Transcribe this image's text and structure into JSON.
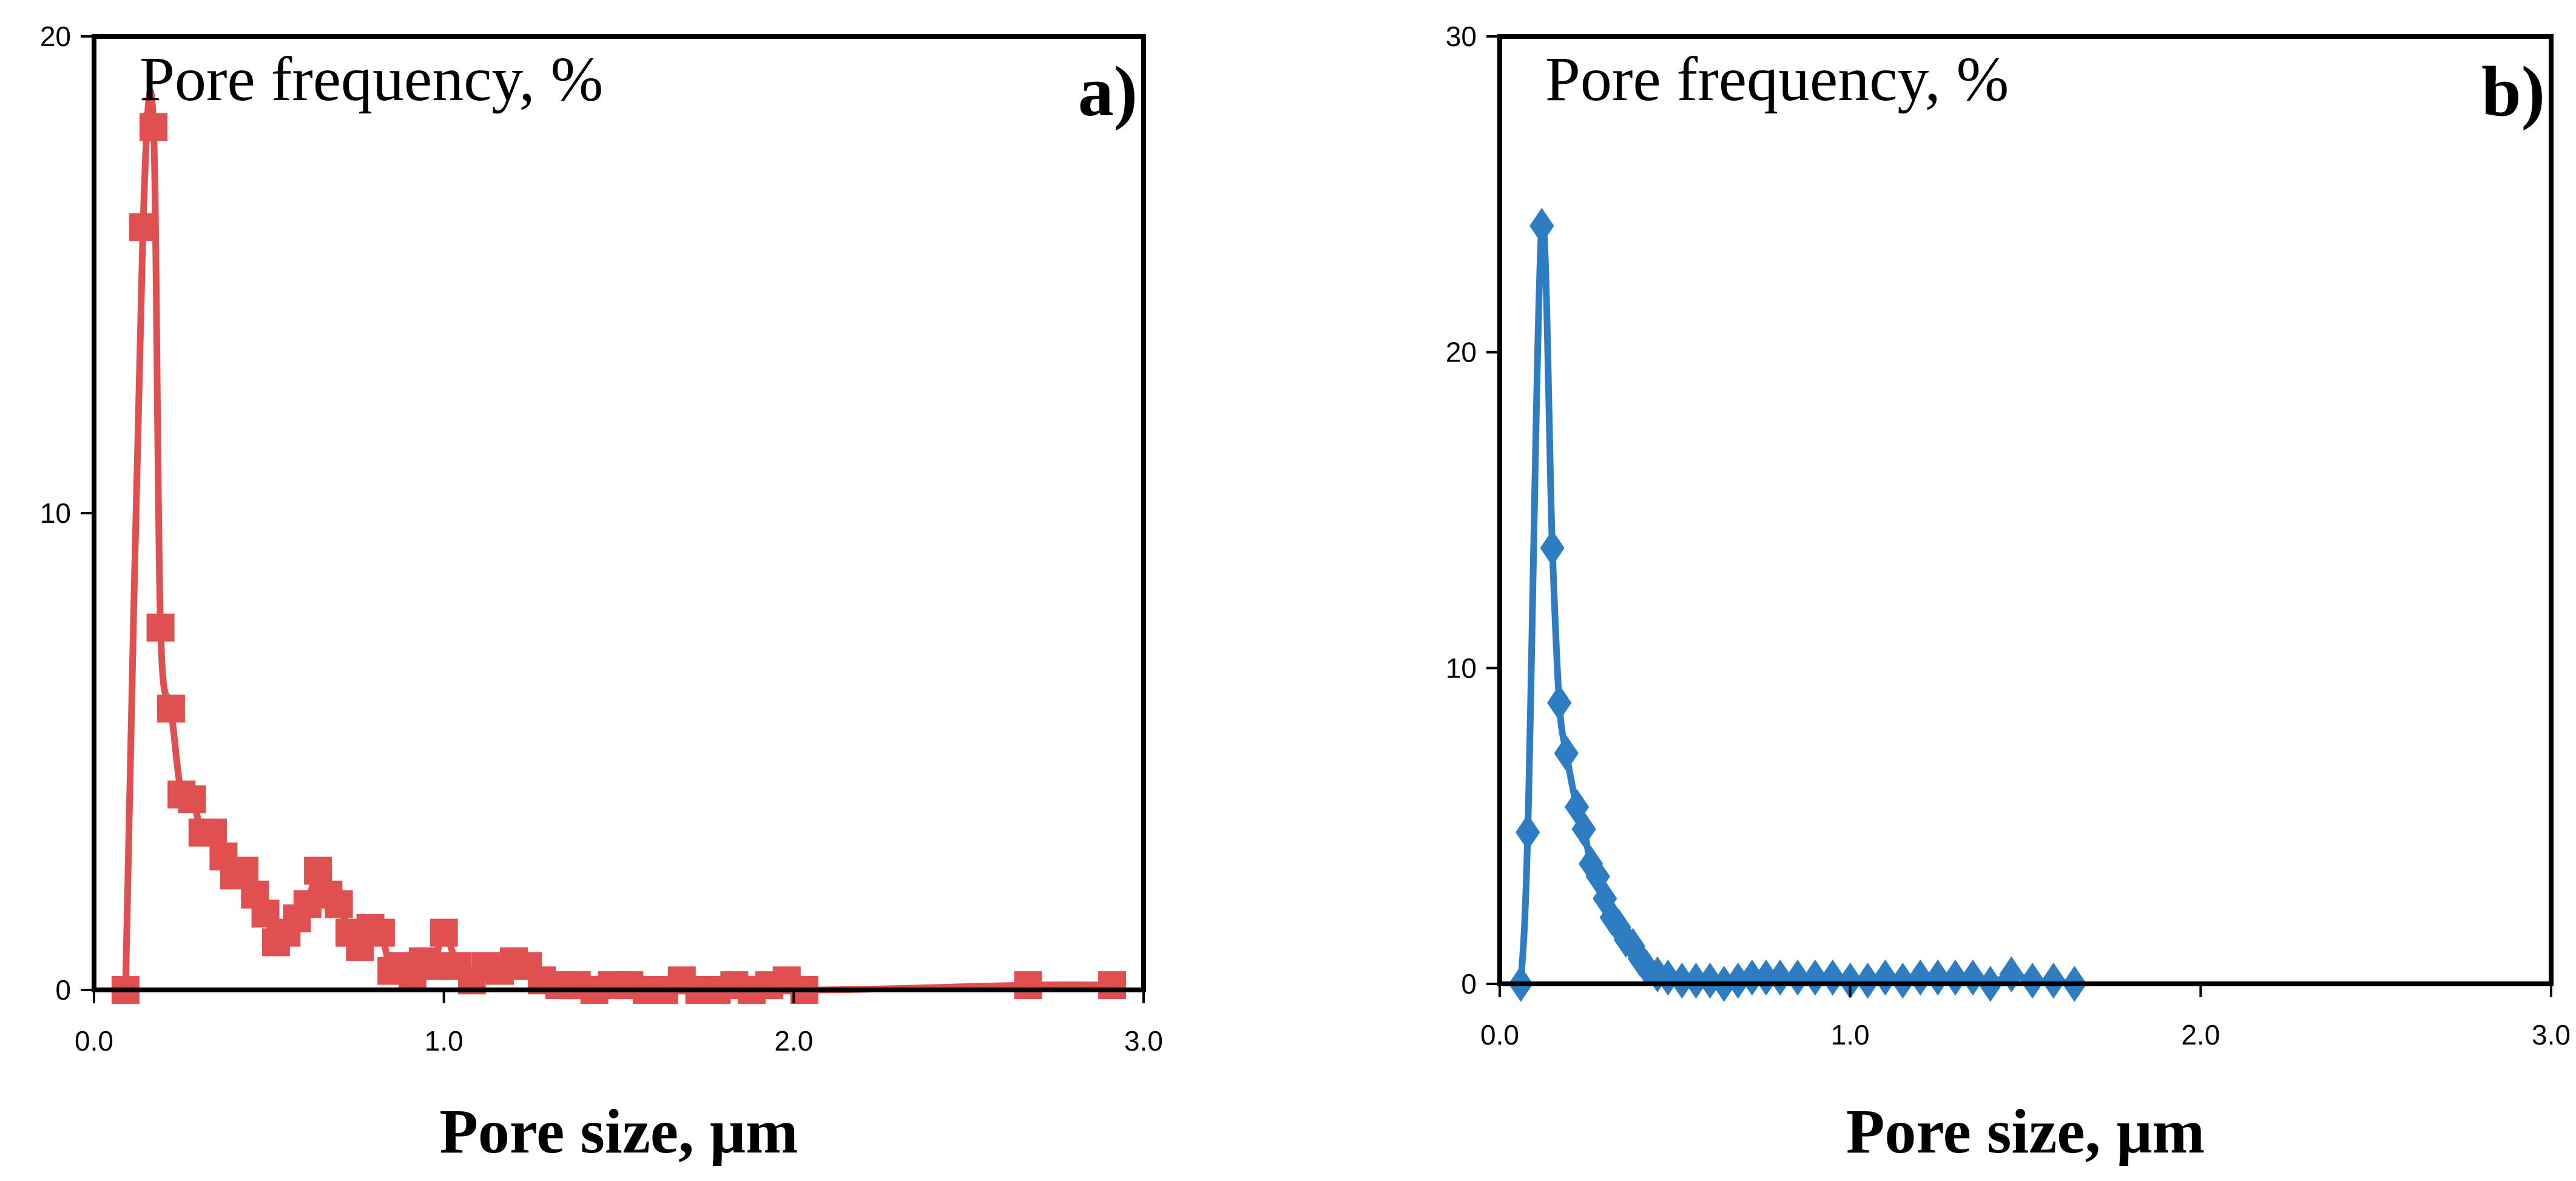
{
  "chart_data": [
    {
      "type": "line",
      "panel_label": "a)",
      "title": "Pore frequency, %",
      "xlabel": "Pore size, μm",
      "ylabel": "",
      "xlim": [
        0,
        3
      ],
      "ylim": [
        0,
        20
      ],
      "xticks": [
        0,
        1,
        2,
        3
      ],
      "xtick_labels": [
        "0.0",
        "1.0",
        "2.0",
        "3.0"
      ],
      "yticks": [
        0,
        10,
        20
      ],
      "ytick_labels": [
        "0",
        "10",
        "20"
      ],
      "grid": false,
      "marker": "square",
      "color": "#e05050",
      "series": [
        {
          "name": "a",
          "x": [
            0.09,
            0.14,
            0.17,
            0.19,
            0.22,
            0.25,
            0.28,
            0.31,
            0.34,
            0.37,
            0.4,
            0.43,
            0.46,
            0.49,
            0.52,
            0.55,
            0.58,
            0.61,
            0.64,
            0.67,
            0.7,
            0.73,
            0.76,
            0.79,
            0.82,
            0.85,
            0.88,
            0.91,
            0.94,
            0.97,
            1.0,
            1.04,
            1.08,
            1.12,
            1.16,
            1.2,
            1.24,
            1.28,
            1.33,
            1.38,
            1.43,
            1.48,
            1.53,
            1.58,
            1.63,
            1.68,
            1.73,
            1.78,
            1.83,
            1.88,
            1.93,
            1.98,
            2.03,
            2.67,
            2.91
          ],
          "y": [
            0.0,
            16.0,
            18.1,
            7.6,
            5.9,
            4.1,
            4.0,
            3.3,
            3.3,
            2.8,
            2.4,
            2.5,
            2.0,
            1.6,
            1.0,
            1.2,
            1.5,
            1.8,
            2.5,
            2.0,
            1.8,
            1.2,
            0.9,
            1.3,
            1.2,
            0.4,
            0.5,
            0.3,
            0.6,
            0.5,
            1.2,
            0.5,
            0.2,
            0.5,
            0.4,
            0.6,
            0.5,
            0.2,
            0.1,
            0.1,
            0.0,
            0.1,
            0.1,
            0.0,
            0.0,
            0.2,
            0.0,
            0.0,
            0.1,
            0.0,
            0.1,
            0.2,
            0.0,
            0.1,
            0.1
          ]
        }
      ]
    },
    {
      "type": "line",
      "panel_label": "b)",
      "title": "Pore frequency, %",
      "xlabel": "Pore size, μm",
      "ylabel": "",
      "xlim": [
        0,
        3
      ],
      "ylim": [
        0,
        30
      ],
      "xticks": [
        0,
        1,
        2,
        3
      ],
      "xtick_labels": [
        "0.0",
        "1.0",
        "2.0",
        "3.0"
      ],
      "yticks": [
        0,
        10,
        20,
        30
      ],
      "ytick_labels": [
        "0",
        "10",
        "20",
        "30"
      ],
      "grid": false,
      "marker": "diamond",
      "color": "#2e7dc2",
      "series": [
        {
          "name": "b",
          "x": [
            0.06,
            0.08,
            0.12,
            0.15,
            0.17,
            0.19,
            0.22,
            0.24,
            0.26,
            0.28,
            0.3,
            0.32,
            0.34,
            0.36,
            0.38,
            0.4,
            0.42,
            0.45,
            0.48,
            0.52,
            0.56,
            0.6,
            0.64,
            0.68,
            0.72,
            0.76,
            0.8,
            0.85,
            0.9,
            0.95,
            1.0,
            1.05,
            1.1,
            1.15,
            1.2,
            1.25,
            1.3,
            1.35,
            1.4,
            1.46,
            1.52,
            1.58,
            1.64
          ],
          "y": [
            0.0,
            4.8,
            24.0,
            13.8,
            8.9,
            7.3,
            5.6,
            4.9,
            3.8,
            3.4,
            2.7,
            2.1,
            1.8,
            1.4,
            1.2,
            0.8,
            0.5,
            0.3,
            0.2,
            0.1,
            0.1,
            0.1,
            0.0,
            0.1,
            0.2,
            0.2,
            0.2,
            0.2,
            0.2,
            0.2,
            0.1,
            0.1,
            0.2,
            0.1,
            0.2,
            0.2,
            0.2,
            0.2,
            0.0,
            0.3,
            0.1,
            0.1,
            0.0
          ]
        }
      ]
    }
  ]
}
